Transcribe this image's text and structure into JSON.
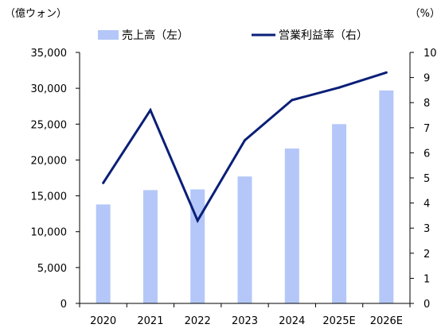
{
  "chart_data": {
    "type": "bar",
    "categories": [
      "2020",
      "2021",
      "2022",
      "2023",
      "2024",
      "2025E",
      "2026E"
    ],
    "series": [
      {
        "name": "売上高（左）",
        "type": "bar",
        "axis": "left",
        "color": "#b4c7f8",
        "values": [
          13800,
          15800,
          15900,
          17700,
          21600,
          25000,
          29700
        ]
      },
      {
        "name": "営業利益率（右）",
        "type": "line",
        "axis": "right",
        "color": "#0a1f78",
        "values": [
          4.8,
          7.7,
          3.3,
          6.5,
          8.1,
          8.6,
          9.2
        ]
      }
    ],
    "left_axis": {
      "unit": "（億ウォン）",
      "ylim": [
        0,
        35000
      ],
      "ticks": [
        "0",
        "5,000",
        "10,000",
        "15,000",
        "20,000",
        "25,000",
        "30,000",
        "35,000"
      ],
      "tick_values": [
        0,
        5000,
        10000,
        15000,
        20000,
        25000,
        30000,
        35000
      ]
    },
    "right_axis": {
      "unit": "（%）",
      "ylim": [
        0,
        10
      ],
      "ticks": [
        "0",
        "1",
        "2",
        "3",
        "4",
        "5",
        "6",
        "7",
        "8",
        "9",
        "10"
      ],
      "tick_values": [
        0,
        1,
        2,
        3,
        4,
        5,
        6,
        7,
        8,
        9,
        10
      ]
    },
    "legend_position": "top",
    "grid": false
  }
}
